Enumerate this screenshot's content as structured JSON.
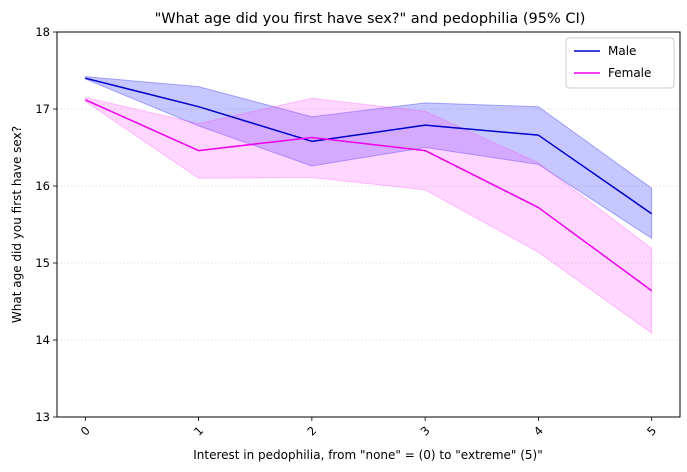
{
  "chart_data": {
    "type": "line",
    "title": "\"What age did you first have sex?\" and pedophilia (95% CI)",
    "xlabel": "Interest in pedophilia, from \"none\" = (0) to \"extreme\" (5)\"",
    "ylabel": "What age did you first have sex?",
    "x": [
      0,
      1,
      2,
      3,
      4,
      5
    ],
    "xtick_labels": [
      "0",
      "1",
      "2",
      "3",
      "4",
      "5"
    ],
    "yticks": [
      13,
      14,
      15,
      16,
      17,
      18
    ],
    "ytick_labels": [
      "13",
      "14",
      "15",
      "16",
      "17",
      "18"
    ],
    "xlim": [
      -0.25,
      5.25
    ],
    "ylim": [
      13,
      18
    ],
    "grid": "horizontal, dotted, light",
    "legend": "top-right",
    "series": [
      {
        "name": "Male",
        "color": "#0000cc",
        "fill": "#0000ff",
        "values": [
          17.4,
          17.03,
          16.58,
          16.79,
          16.66,
          15.64
        ],
        "ci_low": [
          17.39,
          16.78,
          16.26,
          16.5,
          16.28,
          15.32
        ],
        "ci_high": [
          17.42,
          17.29,
          16.9,
          17.08,
          17.03,
          15.97
        ]
      },
      {
        "name": "Female",
        "color": "#ee00ee",
        "fill": "#ff44ff",
        "values": [
          17.12,
          16.46,
          16.63,
          16.46,
          15.72,
          14.64
        ],
        "ci_low": [
          17.1,
          16.1,
          16.11,
          15.95,
          15.14,
          14.09
        ],
        "ci_high": [
          17.15,
          16.81,
          17.14,
          16.97,
          16.3,
          15.19
        ]
      }
    ]
  }
}
